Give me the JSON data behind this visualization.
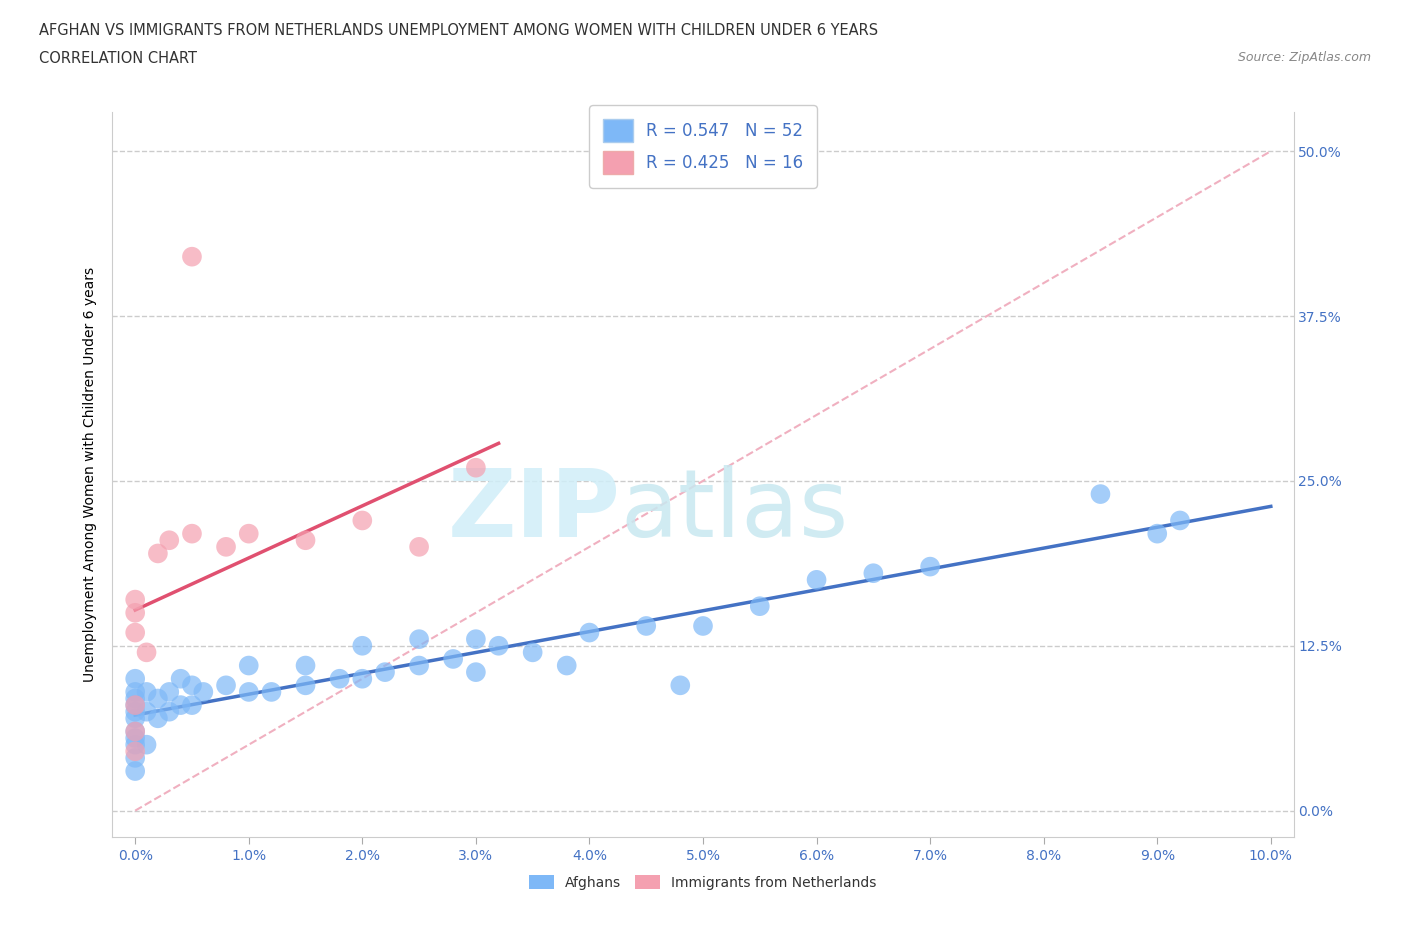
{
  "title_line1": "AFGHAN VS IMMIGRANTS FROM NETHERLANDS UNEMPLOYMENT AMONG WOMEN WITH CHILDREN UNDER 6 YEARS",
  "title_line2": "CORRELATION CHART",
  "source": "Source: ZipAtlas.com",
  "ylabel": "Unemployment Among Women with Children Under 6 years",
  "xlim": [
    -0.2,
    10.2
  ],
  "ylim": [
    -2.0,
    53.0
  ],
  "yticks": [
    0.0,
    12.5,
    25.0,
    37.5,
    50.0
  ],
  "xticks": [
    0.0,
    1.0,
    2.0,
    3.0,
    4.0,
    5.0,
    6.0,
    7.0,
    8.0,
    9.0,
    10.0
  ],
  "afghan_color": "#7EB8F7",
  "afghan_line_color": "#4472C4",
  "netherlands_color": "#F4A0B0",
  "netherlands_line_color": "#E05070",
  "diag_color": "#F4A0B0",
  "afghan_R": 0.547,
  "afghan_N": 52,
  "netherlands_R": 0.425,
  "netherlands_N": 16,
  "legend_label_afghan": "Afghans",
  "legend_label_netherlands": "Immigrants from Netherlands",
  "watermark_zip": "ZIP",
  "watermark_atlas": "atlas",
  "afghan_x": [
    0.0,
    0.0,
    0.0,
    0.0,
    0.0,
    0.0,
    0.0,
    0.0,
    0.0,
    0.0,
    0.0,
    0.1,
    0.1,
    0.1,
    0.2,
    0.2,
    0.3,
    0.3,
    0.4,
    0.4,
    0.5,
    0.5,
    0.6,
    0.8,
    1.0,
    1.0,
    1.2,
    1.5,
    1.5,
    1.8,
    2.0,
    2.0,
    2.2,
    2.5,
    2.5,
    2.8,
    3.0,
    3.0,
    3.2,
    3.5,
    3.8,
    4.0,
    4.5,
    4.8,
    5.0,
    5.5,
    6.0,
    6.5,
    7.0,
    8.5,
    9.0,
    9.2
  ],
  "afghan_y": [
    3.0,
    4.0,
    5.0,
    5.5,
    6.0,
    7.0,
    7.5,
    8.0,
    8.5,
    9.0,
    10.0,
    5.0,
    7.5,
    9.0,
    7.0,
    8.5,
    7.5,
    9.0,
    8.0,
    10.0,
    8.0,
    9.5,
    9.0,
    9.5,
    9.0,
    11.0,
    9.0,
    9.5,
    11.0,
    10.0,
    10.0,
    12.5,
    10.5,
    11.0,
    13.0,
    11.5,
    10.5,
    13.0,
    12.5,
    12.0,
    11.0,
    13.5,
    14.0,
    9.5,
    14.0,
    15.5,
    17.5,
    18.0,
    18.5,
    24.0,
    21.0,
    22.0
  ],
  "netherlands_x": [
    0.0,
    0.0,
    0.0,
    0.0,
    0.0,
    0.0,
    0.1,
    0.2,
    0.3,
    0.5,
    0.8,
    1.0,
    1.5,
    2.0,
    2.5,
    3.0
  ],
  "netherlands_y": [
    4.5,
    6.0,
    8.0,
    13.5,
    15.0,
    16.0,
    12.0,
    19.5,
    20.5,
    21.0,
    20.0,
    21.0,
    20.5,
    22.0,
    20.0,
    26.0
  ],
  "netherlands_outlier_x": 0.5,
  "netherlands_outlier_y": 42.0
}
